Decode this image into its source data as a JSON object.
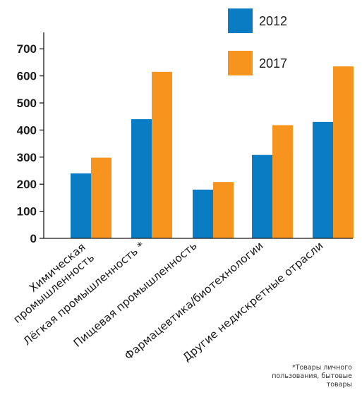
{
  "chart_data": {
    "type": "bar",
    "categories": [
      [
        "Химическая",
        "промышленность"
      ],
      [
        "Лёгкая промышленность *"
      ],
      [
        "Пищевая промышленность"
      ],
      [
        "Фармацевтика/биотехнологии"
      ],
      [
        "Другие недискретные отрасли"
      ]
    ],
    "series": [
      {
        "name": "2012",
        "values": [
          240,
          440,
          180,
          308,
          430
        ],
        "color": "#0a7cc4"
      },
      {
        "name": "2017",
        "values": [
          298,
          615,
          208,
          418,
          635
        ],
        "color": "#f7941d"
      }
    ],
    "yticks": [
      0,
      100,
      200,
      300,
      400,
      500,
      600,
      700
    ],
    "ylim": [
      0,
      700
    ],
    "grid": false,
    "legend_position": "top-right",
    "title": "",
    "xlabel": "",
    "ylabel": ""
  },
  "footnote": "*Товары личного пользования, бытовые товары"
}
